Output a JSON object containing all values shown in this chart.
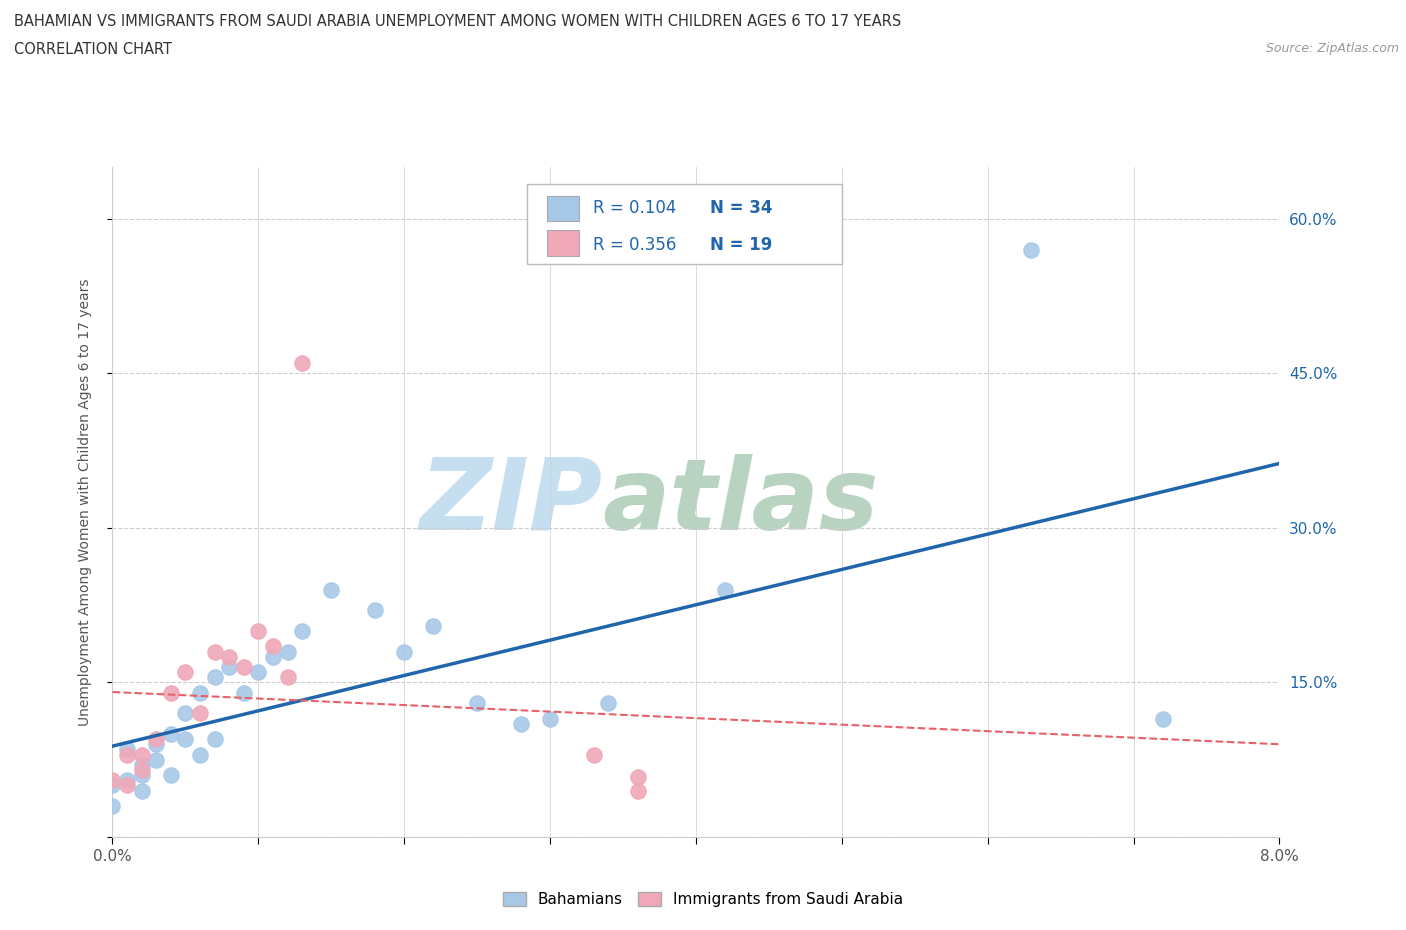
{
  "title_line1": "BAHAMIAN VS IMMIGRANTS FROM SAUDI ARABIA UNEMPLOYMENT AMONG WOMEN WITH CHILDREN AGES 6 TO 17 YEARS",
  "title_line2": "CORRELATION CHART",
  "source": "Source: ZipAtlas.com",
  "ylabel_label": "Unemployment Among Women with Children Ages 6 to 17 years",
  "xlim": [
    0.0,
    0.08
  ],
  "ylim": [
    0.0,
    0.65
  ],
  "x_ticks": [
    0.0,
    0.01,
    0.02,
    0.03,
    0.04,
    0.05,
    0.06,
    0.07,
    0.08
  ],
  "x_tick_labels": [
    "0.0%",
    "",
    "",
    "",
    "",
    "",
    "",
    "",
    "8.0%"
  ],
  "y_ticks": [
    0.0,
    0.15,
    0.3,
    0.45,
    0.6
  ],
  "y_tick_labels_right": [
    "",
    "15.0%",
    "30.0%",
    "45.0%",
    "60.0%"
  ],
  "bahamians_x": [
    0.0,
    0.0,
    0.001,
    0.001,
    0.002,
    0.002,
    0.002,
    0.003,
    0.003,
    0.004,
    0.004,
    0.005,
    0.005,
    0.006,
    0.006,
    0.007,
    0.007,
    0.008,
    0.009,
    0.01,
    0.011,
    0.012,
    0.013,
    0.015,
    0.018,
    0.02,
    0.022,
    0.025,
    0.028,
    0.03,
    0.034,
    0.042,
    0.063,
    0.072
  ],
  "bahamians_y": [
    0.05,
    0.03,
    0.085,
    0.055,
    0.07,
    0.06,
    0.045,
    0.09,
    0.075,
    0.1,
    0.06,
    0.12,
    0.095,
    0.14,
    0.08,
    0.155,
    0.095,
    0.165,
    0.14,
    0.16,
    0.175,
    0.18,
    0.2,
    0.24,
    0.22,
    0.18,
    0.205,
    0.13,
    0.11,
    0.115,
    0.13,
    0.24,
    0.57,
    0.115
  ],
  "saudi_x": [
    0.0,
    0.001,
    0.001,
    0.002,
    0.002,
    0.003,
    0.004,
    0.005,
    0.006,
    0.007,
    0.008,
    0.009,
    0.01,
    0.011,
    0.012,
    0.013,
    0.033,
    0.036,
    0.036
  ],
  "saudi_y": [
    0.055,
    0.05,
    0.08,
    0.065,
    0.08,
    0.095,
    0.14,
    0.16,
    0.12,
    0.18,
    0.175,
    0.165,
    0.2,
    0.185,
    0.155,
    0.46,
    0.08,
    0.045,
    0.058
  ],
  "bahamians_color": "#a8c8e8",
  "saudi_color": "#f0a8b8",
  "bahamians_trend_color": "#2166ac",
  "saudi_trend_color": "#e8606a",
  "legend_R_bahamians": "0.104",
  "legend_N_bahamians": "34",
  "legend_R_saudi": "0.356",
  "legend_N_saudi": "19",
  "watermark_zip": "ZIP",
  "watermark_atlas": "atlas",
  "watermark_color_zip": "#c5dff0",
  "watermark_color_atlas": "#b8d4c0",
  "background_color": "#ffffff",
  "grid_color": "#cccccc",
  "legend_text_color": "#2166ac",
  "title_color": "#333333"
}
